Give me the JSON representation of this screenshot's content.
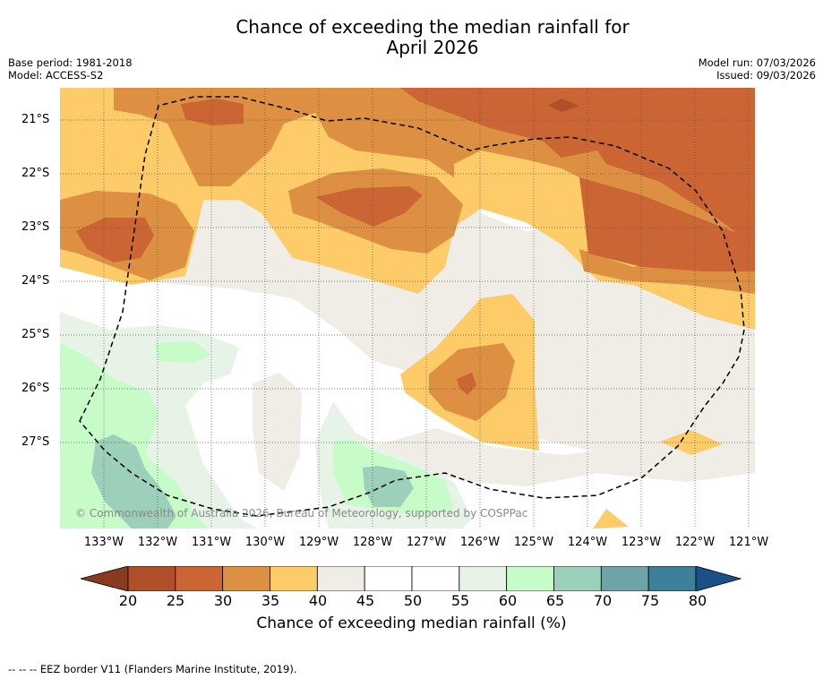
{
  "title": {
    "line1": "Chance of exceeding the median rainfall for",
    "line2": "April 2026"
  },
  "meta_left": {
    "base_period": "Base period: 1981-2018",
    "model": "Model: ACCESS-S2"
  },
  "meta_right": {
    "model_run": "Model run: 07/03/2026",
    "issued": "Issued: 09/03/2026"
  },
  "map": {
    "lat_labels": [
      "21°S",
      "22°S",
      "23°S",
      "24°S",
      "25°S",
      "26°S",
      "27°S"
    ],
    "lon_labels": [
      "133°W",
      "132°W",
      "131°W",
      "130°W",
      "129°W",
      "128°W",
      "127°W",
      "126°W",
      "125°W",
      "124°W",
      "123°W",
      "122°W",
      "121°W"
    ],
    "copyright": "© Commonwealth of Australia 2026, Bureau of Meteorology, supported by COSPPac"
  },
  "colorbar": {
    "ticks": [
      "20",
      "25",
      "30",
      "35",
      "40",
      "45",
      "50",
      "55",
      "60",
      "65",
      "70",
      "75",
      "80"
    ],
    "colors": [
      "#b0502b",
      "#cc6534",
      "#de9042",
      "#fdcb68",
      "#f0ece6",
      "#ffffff",
      "#ffffff",
      "#e7f3e6",
      "#c7fcc8",
      "#9dd0bb",
      "#6ea3a8",
      "#3e7f9b"
    ],
    "under_color": "#8a3a21",
    "over_color": "#1a4f88",
    "label": "Chance of exceeding median rainfall (%)"
  },
  "legend_footer": "--  --  -- EEZ border V11 (Flanders Marine Institute, 2019)."
}
